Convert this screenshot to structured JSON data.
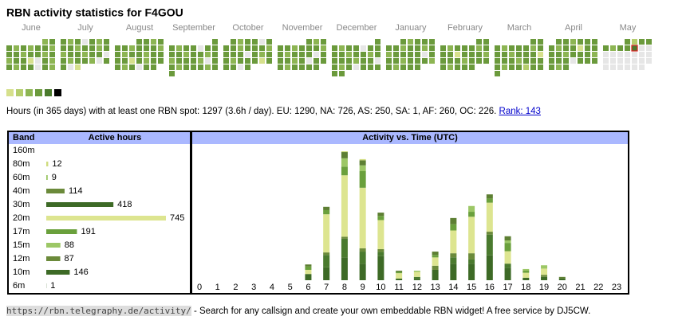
{
  "title": "RBN activity statistics for F4GOU",
  "heatmap": {
    "level_colors": [
      "#e6e6e6",
      "#d6e08c",
      "#b4cd6c",
      "#8db553",
      "#6b9a3c",
      "#4a7a2c",
      "#000000"
    ],
    "months": [
      {
        "name": "June",
        "weeks": [
          [
            null,
            null,
            null,
            null,
            null,
            3,
            4
          ],
          [
            4,
            3,
            4,
            3,
            4,
            4,
            3
          ],
          [
            4,
            4,
            3,
            4,
            4,
            3,
            4
          ],
          [
            3,
            4,
            4,
            1,
            0,
            4,
            3
          ],
          [
            4,
            3,
            4,
            4,
            0,
            4,
            3
          ]
        ]
      },
      {
        "name": "July",
        "weeks": [
          [
            4,
            3,
            4,
            0,
            4,
            3,
            4
          ],
          [
            4,
            4,
            3,
            4,
            4,
            3,
            4
          ],
          [
            3,
            4,
            4,
            3,
            4,
            4,
            0
          ],
          [
            4,
            3,
            4,
            4,
            3,
            0,
            4
          ],
          [
            4,
            0,
            1,
            null,
            null,
            null,
            null
          ]
        ]
      },
      {
        "name": "August",
        "weeks": [
          [
            null,
            null,
            null,
            4,
            4,
            3,
            4
          ],
          [
            4,
            4,
            3,
            4,
            4,
            4,
            3
          ],
          [
            4,
            3,
            4,
            4,
            3,
            4,
            4
          ],
          [
            4,
            4,
            1,
            4,
            3,
            4,
            4
          ],
          [
            4,
            3,
            4,
            0,
            4,
            4,
            null
          ]
        ]
      },
      {
        "name": "September",
        "weeks": [
          [
            null,
            null,
            null,
            null,
            null,
            null,
            4
          ],
          [
            4,
            3,
            4,
            4,
            0,
            4,
            4
          ],
          [
            4,
            4,
            3,
            4,
            4,
            3,
            4
          ],
          [
            3,
            4,
            4,
            4,
            3,
            0,
            4
          ],
          [
            4,
            3,
            4,
            4,
            4,
            3,
            4
          ],
          [
            4,
            null,
            null,
            null,
            null,
            null,
            null
          ]
        ]
      },
      {
        "name": "October",
        "weeks": [
          [
            null,
            4,
            3,
            4,
            4,
            0,
            4
          ],
          [
            4,
            4,
            3,
            4,
            4,
            4,
            3
          ],
          [
            4,
            4,
            4,
            0,
            4,
            3,
            4
          ],
          [
            4,
            3,
            4,
            4,
            4,
            1,
            4
          ],
          [
            4,
            4,
            0,
            4,
            null,
            null,
            null
          ]
        ]
      },
      {
        "name": "November",
        "weeks": [
          [
            null,
            null,
            null,
            null,
            4,
            3,
            4
          ],
          [
            4,
            4,
            3,
            4,
            4,
            4,
            3
          ],
          [
            4,
            3,
            4,
            4,
            4,
            0,
            4
          ],
          [
            4,
            4,
            3,
            4,
            0,
            4,
            4
          ],
          [
            4,
            3,
            4,
            4,
            4,
            4,
            null
          ]
        ]
      },
      {
        "name": "December",
        "weeks": [
          [
            null,
            null,
            null,
            null,
            null,
            null,
            4
          ],
          [
            4,
            3,
            4,
            4,
            0,
            4,
            4
          ],
          [
            4,
            4,
            3,
            4,
            4,
            3,
            4
          ],
          [
            4,
            4,
            4,
            3,
            4,
            4,
            0
          ],
          [
            4,
            3,
            4,
            0,
            4,
            4,
            4
          ],
          [
            4,
            4,
            null,
            null,
            null,
            null,
            null
          ]
        ]
      },
      {
        "name": "January",
        "weeks": [
          [
            null,
            null,
            4,
            3,
            4,
            4,
            4
          ],
          [
            4,
            4,
            3,
            4,
            4,
            3,
            4
          ],
          [
            3,
            4,
            4,
            4,
            4,
            0,
            4
          ],
          [
            4,
            4,
            3,
            4,
            4,
            4,
            3
          ],
          [
            4,
            3,
            4,
            4,
            4,
            null,
            null
          ]
        ]
      },
      {
        "name": "February",
        "weeks": [
          [
            null,
            null,
            null,
            null,
            null,
            4,
            4
          ],
          [
            4,
            3,
            4,
            4,
            4,
            3,
            4
          ],
          [
            4,
            4,
            1,
            4,
            4,
            4,
            3
          ],
          [
            4,
            4,
            4,
            3,
            4,
            4,
            4
          ],
          [
            4,
            3,
            4,
            4,
            4,
            null,
            null
          ]
        ]
      },
      {
        "name": "March",
        "weeks": [
          [
            null,
            null,
            null,
            null,
            null,
            4,
            4
          ],
          [
            4,
            3,
            4,
            4,
            4,
            3,
            4
          ],
          [
            4,
            4,
            3,
            4,
            4,
            4,
            1
          ],
          [
            4,
            4,
            4,
            3,
            4,
            4,
            4
          ],
          [
            4,
            3,
            4,
            4,
            2,
            4,
            4
          ],
          [
            4,
            null,
            null,
            null,
            null,
            null,
            null
          ]
        ]
      },
      {
        "name": "April",
        "weeks": [
          [
            null,
            4,
            4,
            3,
            4,
            4,
            4
          ],
          [
            4,
            3,
            4,
            4,
            1,
            4,
            4
          ],
          [
            4,
            4,
            3,
            4,
            4,
            4,
            3
          ],
          [
            4,
            4,
            4,
            0,
            4,
            4,
            4
          ],
          [
            4,
            3,
            4,
            null,
            null,
            null,
            null
          ]
        ]
      },
      {
        "name": "May",
        "weeks": [
          [
            null,
            null,
            null,
            4,
            2,
            4,
            4
          ],
          [
            4,
            3,
            4,
            4,
            5,
            0,
            0
          ],
          [
            0,
            0,
            0,
            0,
            0,
            0,
            0
          ],
          [
            0,
            0,
            0,
            0,
            0,
            0,
            0
          ],
          [
            0,
            0,
            0,
            0,
            0,
            0,
            null
          ]
        ]
      }
    ]
  },
  "summary": {
    "text": "Hours (in 365 days) with at least one RBN spot: 1297 (3.6h / day). EU: 1290, NA: 726, AS: 250, SA: 1, AF: 260, OC: 226.",
    "rank_link": "Rank: 143"
  },
  "chart_data": [
    {
      "type": "hbar",
      "category_label": "Band",
      "value_label": "Active hours",
      "categories": [
        "160m",
        "80m",
        "60m",
        "40m",
        "30m",
        "20m",
        "17m",
        "15m",
        "12m",
        "10m",
        "6m"
      ],
      "values": [
        null,
        12,
        9,
        114,
        418,
        745,
        191,
        88,
        87,
        146,
        1
      ],
      "colors": [
        null,
        "#cfdc7e",
        "#9cc766",
        "#6b8a3a",
        "#3d6a26",
        "#dde590",
        "#6aa03c",
        "#9cc766",
        "#6b8a3a",
        "#3d6a26",
        "#3d6a26"
      ]
    },
    {
      "type": "stacked_bar",
      "title": "Activity vs. Time (UTC)",
      "x": [
        0,
        1,
        2,
        3,
        4,
        5,
        6,
        7,
        8,
        9,
        10,
        11,
        12,
        13,
        14,
        15,
        16,
        17,
        18,
        19,
        20,
        21,
        22,
        23
      ],
      "series": [
        {
          "color": "#3d6a26",
          "values": [
            0,
            0,
            0,
            0,
            0,
            0,
            15,
            31,
            55,
            40,
            58,
            4,
            3,
            25,
            40,
            40,
            60,
            30,
            6,
            8,
            4,
            0,
            0,
            0
          ]
        },
        {
          "color": "#4a7a2e",
          "values": [
            0,
            0,
            0,
            0,
            0,
            0,
            0,
            30,
            45,
            29,
            10,
            0,
            5,
            0,
            15,
            10,
            50,
            10,
            0,
            0,
            0,
            0,
            0,
            0
          ]
        },
        {
          "color": "#6b8a3a",
          "values": [
            0,
            0,
            0,
            0,
            0,
            0,
            0,
            6,
            5,
            8,
            7,
            0,
            0,
            10,
            10,
            15,
            7,
            0,
            0,
            5,
            0,
            0,
            0,
            0
          ]
        },
        {
          "color": "#dde590",
          "values": [
            0,
            0,
            0,
            0,
            0,
            0,
            10,
            92,
            148,
            146,
            70,
            13,
            12,
            20,
            55,
            88,
            70,
            30,
            12,
            15,
            0,
            0,
            0,
            0
          ]
        },
        {
          "color": "#6aa03c",
          "values": [
            0,
            0,
            0,
            0,
            0,
            0,
            8,
            10,
            21,
            40,
            10,
            3,
            0,
            6,
            15,
            12,
            10,
            20,
            5,
            0,
            0,
            0,
            0,
            0
          ]
        },
        {
          "color": "#9cc766",
          "values": [
            0,
            0,
            0,
            0,
            0,
            0,
            0,
            0,
            20,
            14,
            0,
            0,
            3,
            0,
            0,
            14,
            0,
            6,
            4,
            8,
            0,
            0,
            0,
            0
          ]
        },
        {
          "color": "#5d7f33",
          "values": [
            0,
            0,
            0,
            0,
            0,
            0,
            5,
            8,
            15,
            12,
            8,
            3,
            0,
            8,
            15,
            0,
            10,
            10,
            0,
            0,
            4,
            0,
            0,
            0
          ]
        },
        {
          "color": "#cfdc7e",
          "values": [
            0,
            0,
            0,
            0,
            0,
            0,
            0,
            0,
            2,
            3,
            0,
            0,
            0,
            0,
            0,
            0,
            0,
            0,
            0,
            0,
            0,
            0,
            0,
            0
          ]
        }
      ]
    }
  ],
  "footer": {
    "url": "https://rbn.telegraphy.de/activity/",
    "text": " - Search for any callsign and create your own embeddable RBN widget! A free service by DJ5CW."
  }
}
